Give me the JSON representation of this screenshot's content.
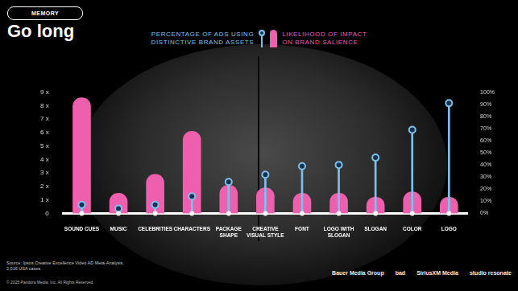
{
  "chart_data": {
    "type": "bar",
    "title": "Go long",
    "subtitle": "MEMORY",
    "categories": [
      "SOUND CUES",
      "MUSIC",
      "CELEBRITIES",
      "CHARACTERS",
      "PACKAGE SHAPE",
      "CREATIVE VISUAL STYLE",
      "FONT",
      "LOGO WITH SLOGAN",
      "SLOGAN",
      "COLOR",
      "LOGO"
    ],
    "series": [
      {
        "name": "PERCENTAGE OF ADS USING DISTINCTIVE BRAND ASSETS",
        "color": "#7cc0ee",
        "type": "lollipop",
        "axis": "y2",
        "values": [
          7,
          4,
          7,
          14,
          26,
          32,
          39,
          40,
          46,
          69,
          91
        ]
      },
      {
        "name": "LIKELIHOOD OF IMPACT ON BRAND SALIENCE",
        "color": "#ee5fae",
        "type": "bar",
        "values": [
          8.6,
          1.5,
          2.9,
          6.1,
          2.1,
          1.9,
          1.5,
          1.5,
          1.2,
          1.6,
          1.2
        ]
      }
    ],
    "ylim": [
      0,
      9
    ],
    "yticks": [
      0,
      {
        "value": 1,
        "label": "1 x"
      },
      {
        "value": 2,
        "label": "2 x"
      },
      {
        "value": 3,
        "label": "3 x"
      },
      {
        "value": 4,
        "label": "4 x"
      },
      {
        "value": 5,
        "label": "5 x"
      },
      {
        "value": 6,
        "label": "6 x"
      },
      {
        "value": 7,
        "label": "7 x"
      },
      {
        "value": 8,
        "label": "8 x"
      },
      {
        "value": 9,
        "label": "9 x"
      }
    ],
    "y2lim": [
      0,
      100
    ],
    "y2ticks": [
      {
        "value": 0,
        "label": "0%"
      },
      {
        "value": 10,
        "label": "10%"
      },
      {
        "value": 20,
        "label": "20%"
      },
      {
        "value": 30,
        "label": "30%"
      },
      {
        "value": 40,
        "label": "40%"
      },
      {
        "value": 50,
        "label": "50%"
      },
      {
        "value": 60,
        "label": "60%"
      },
      {
        "value": 70,
        "label": "70%"
      },
      {
        "value": 80,
        "label": "80%"
      },
      {
        "value": 90,
        "label": "90%"
      },
      {
        "value": 100,
        "label": "100%"
      }
    ],
    "grid": false,
    "legend": "top"
  },
  "footer": {
    "source": "Source: Ipsos Creative Excellence Video AD Meta-Analysis, 2,016 USA cases",
    "copyright": "© 2025 Pandora Media, Inc. All Rights Reserved.",
    "logos": [
      "Bauer Media Group",
      "bad",
      "SiriusXM Media",
      "studio resonate"
    ]
  }
}
